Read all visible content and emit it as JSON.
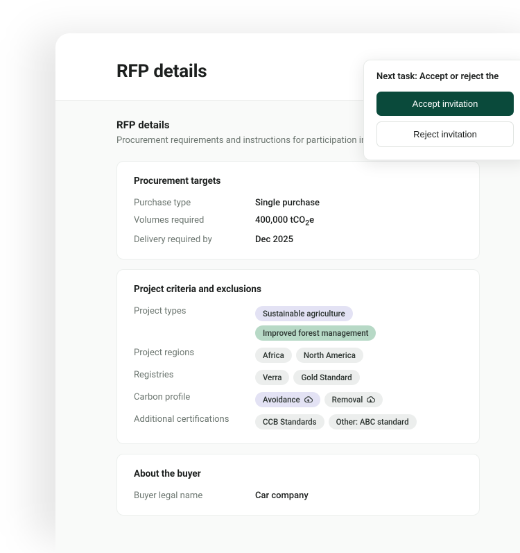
{
  "colors": {
    "text_primary": "#1c1f1e",
    "text_secondary": "#6c7670",
    "bg_content": "#f9faf9",
    "border": "#ecefed",
    "pill_gray": "#eceeed",
    "pill_lilac": "#e3e2f4",
    "pill_green": "#b7d9c6",
    "btn_primary": "#0a4a3b"
  },
  "page": {
    "title": "RFP details"
  },
  "task_panel": {
    "title": "Next task: Accept or reject the",
    "accept_label": "Accept invitation",
    "reject_label": "Reject invitation"
  },
  "rfp_section": {
    "heading": "RFP details",
    "subtitle": "Procurement requirements and instructions for participation in the RFP."
  },
  "procurement": {
    "card_title": "Procurement targets",
    "rows": [
      {
        "label": "Purchase type",
        "value": "Single purchase"
      },
      {
        "label": "Volumes required",
        "value": "400,000 tCO₂e"
      },
      {
        "label": "Delivery required by",
        "value": "Dec 2025"
      }
    ]
  },
  "criteria": {
    "card_title": "Project criteria and exclusions",
    "rows": [
      {
        "label": "Project types",
        "pills": [
          {
            "text": "Sustainable agriculture",
            "variant": "lilac"
          },
          {
            "text": "Improved forest management",
            "variant": "green"
          }
        ]
      },
      {
        "label": "Project regions",
        "pills": [
          {
            "text": "Africa",
            "variant": "gray"
          },
          {
            "text": "North America",
            "variant": "gray"
          }
        ]
      },
      {
        "label": "Registries",
        "pills": [
          {
            "text": "Verra",
            "variant": "gray"
          },
          {
            "text": "Gold Standard",
            "variant": "gray"
          }
        ]
      },
      {
        "label": "Carbon profile",
        "pills": [
          {
            "text": "Avoidance",
            "variant": "lilac",
            "icon": "cloud-up"
          },
          {
            "text": "Removal",
            "variant": "gray",
            "icon": "cloud-down"
          }
        ]
      },
      {
        "label": "Additional certifications",
        "pills": [
          {
            "text": "CCB Standards",
            "variant": "gray"
          },
          {
            "text": "Other: ABC standard",
            "variant": "gray"
          }
        ]
      }
    ]
  },
  "buyer": {
    "card_title": "About the buyer",
    "rows": [
      {
        "label": "Buyer legal name",
        "value": "Car company"
      }
    ]
  }
}
